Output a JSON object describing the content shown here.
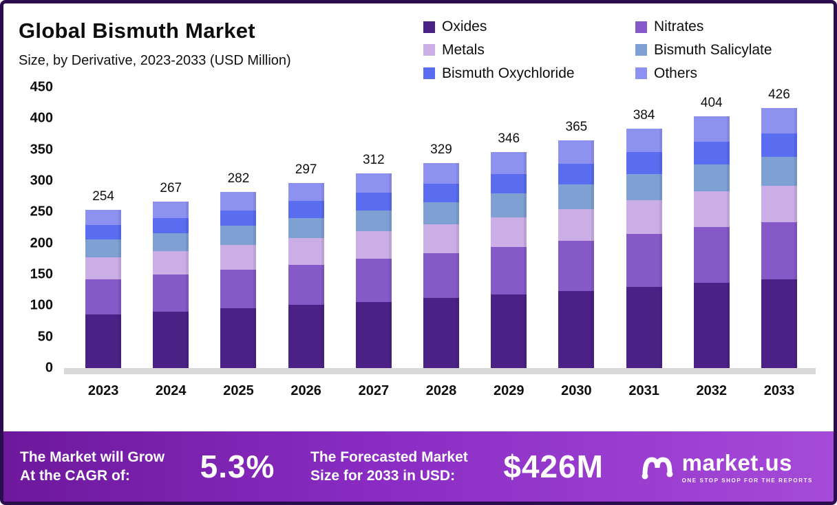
{
  "title": "Global Bismuth Market",
  "subtitle": "Size, by Derivative, 2023-2033 (USD Million)",
  "chart_data": {
    "type": "bar",
    "stacked": true,
    "title": "Global Bismuth Market Size, by Derivative, 2023-2033 (USD Million)",
    "categories": [
      "2023",
      "2024",
      "2025",
      "2026",
      "2027",
      "2028",
      "2029",
      "2030",
      "2031",
      "2032",
      "2033"
    ],
    "totals": [
      254,
      267,
      282,
      297,
      312,
      329,
      346,
      365,
      384,
      404,
      426
    ],
    "series": [
      {
        "name": "Oxides",
        "color": "#4c2185",
        "values": [
          86,
          91,
          96,
          101,
          106,
          112,
          118,
          124,
          130,
          137,
          145
        ]
      },
      {
        "name": "Nitrates",
        "color": "#8659c8",
        "values": [
          56,
          59,
          62,
          65,
          69,
          72,
          76,
          80,
          85,
          89,
          94
        ]
      },
      {
        "name": "Metals",
        "color": "#ccaee6",
        "values": [
          36,
          37,
          39,
          42,
          44,
          46,
          48,
          51,
          54,
          57,
          60
        ]
      },
      {
        "name": "Bismuth Salicylate",
        "color": "#7fa0d2",
        "values": [
          28,
          29,
          31,
          33,
          34,
          36,
          38,
          40,
          42,
          44,
          47
        ]
      },
      {
        "name": "Bismuth Oxychloride",
        "color": "#5a6cf0",
        "values": [
          23,
          24,
          25,
          27,
          28,
          30,
          31,
          33,
          35,
          36,
          38
        ]
      },
      {
        "name": "Others",
        "color": "#8d92f0",
        "values": [
          25,
          27,
          29,
          29,
          31,
          33,
          35,
          37,
          38,
          41,
          42
        ]
      }
    ],
    "ylim": [
      0,
      450
    ],
    "yticks": [
      0,
      50,
      100,
      150,
      200,
      250,
      300,
      350,
      400,
      450
    ],
    "legend_position": "top-right",
    "grid": false
  },
  "banner": {
    "cagr_line1": "The Market will Grow",
    "cagr_line2": "At the CAGR of:",
    "cagr_value": "5.3%",
    "forecast_line1": "The Forecasted Market",
    "forecast_line2": "Size for 2033 in USD:",
    "forecast_value": "$426M",
    "logo_text": "market.us",
    "logo_tagline": "ONE STOP SHOP FOR THE REPORTS"
  }
}
